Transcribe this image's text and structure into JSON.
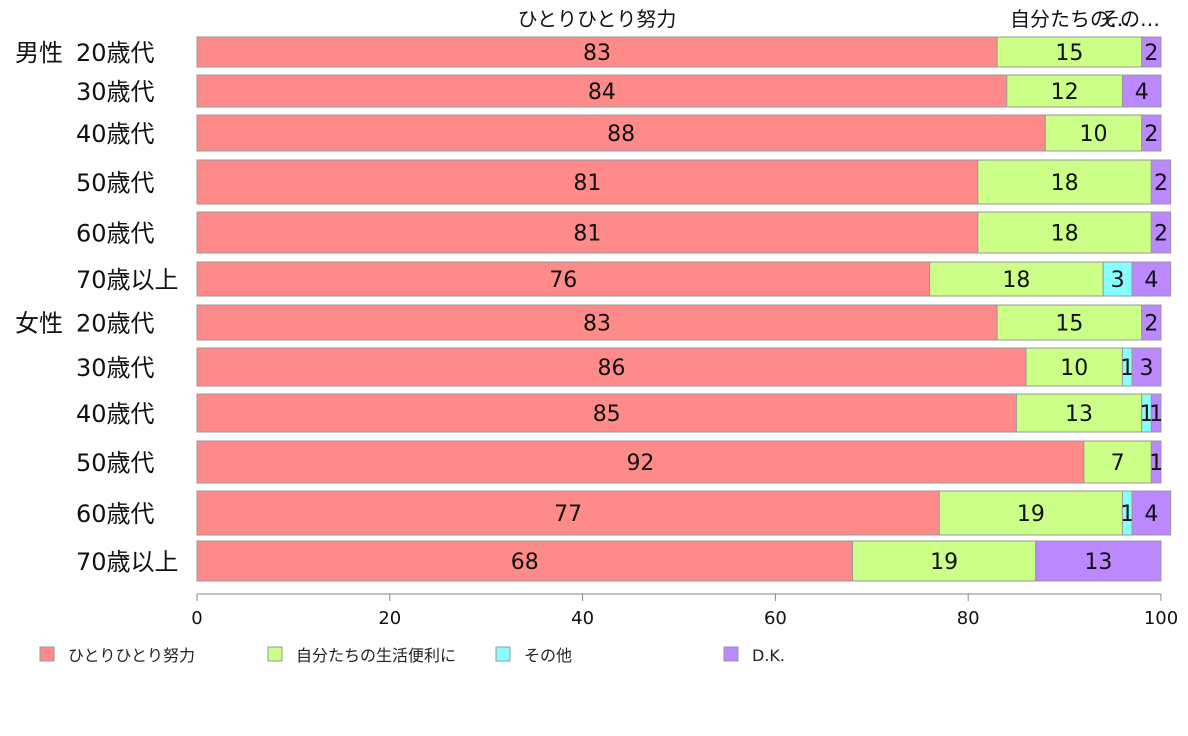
{
  "chart_data": {
    "type": "bar",
    "orientation": "horizontal",
    "stacked": true,
    "xlim": [
      0,
      100
    ],
    "xticks": [
      "0",
      "20",
      "40",
      "60",
      "80",
      "100"
    ],
    "header_labels": [
      "ひとりひとり努力",
      "自分たちの生活便利に",
      "その他"
    ],
    "categories": [
      {
        "group": "男性",
        "label": "20歳代"
      },
      {
        "group": "",
        "label": "30歳代"
      },
      {
        "group": "",
        "label": "40歳代"
      },
      {
        "group": "",
        "label": "50歳代"
      },
      {
        "group": "",
        "label": "60歳代"
      },
      {
        "group": "",
        "label": "70歳以上"
      },
      {
        "group": "女性",
        "label": "20歳代"
      },
      {
        "group": "",
        "label": "30歳代"
      },
      {
        "group": "",
        "label": "40歳代"
      },
      {
        "group": "",
        "label": "50歳代"
      },
      {
        "group": "",
        "label": "60歳代"
      },
      {
        "group": "",
        "label": "70歳以上"
      }
    ],
    "series": [
      {
        "name": "ひとりひとり努力",
        "color": "#ff8a8a",
        "values": [
          83,
          84,
          88,
          81,
          81,
          76,
          83,
          86,
          85,
          92,
          77,
          68
        ]
      },
      {
        "name": "自分たちの生活便利に",
        "color": "#ccff88",
        "values": [
          15,
          12,
          10,
          18,
          18,
          18,
          15,
          10,
          13,
          7,
          19,
          19
        ]
      },
      {
        "name": "その他",
        "color": "#88ffff",
        "values": [
          0,
          0,
          0,
          0,
          0,
          3,
          0,
          1,
          1,
          0,
          1,
          0
        ]
      },
      {
        "name": "D.K.",
        "color": "#bb88ff",
        "values": [
          2,
          4,
          2,
          2,
          2,
          4,
          2,
          3,
          1,
          1,
          4,
          13
        ]
      }
    ],
    "legend_position": "bottom",
    "grid": false
  }
}
